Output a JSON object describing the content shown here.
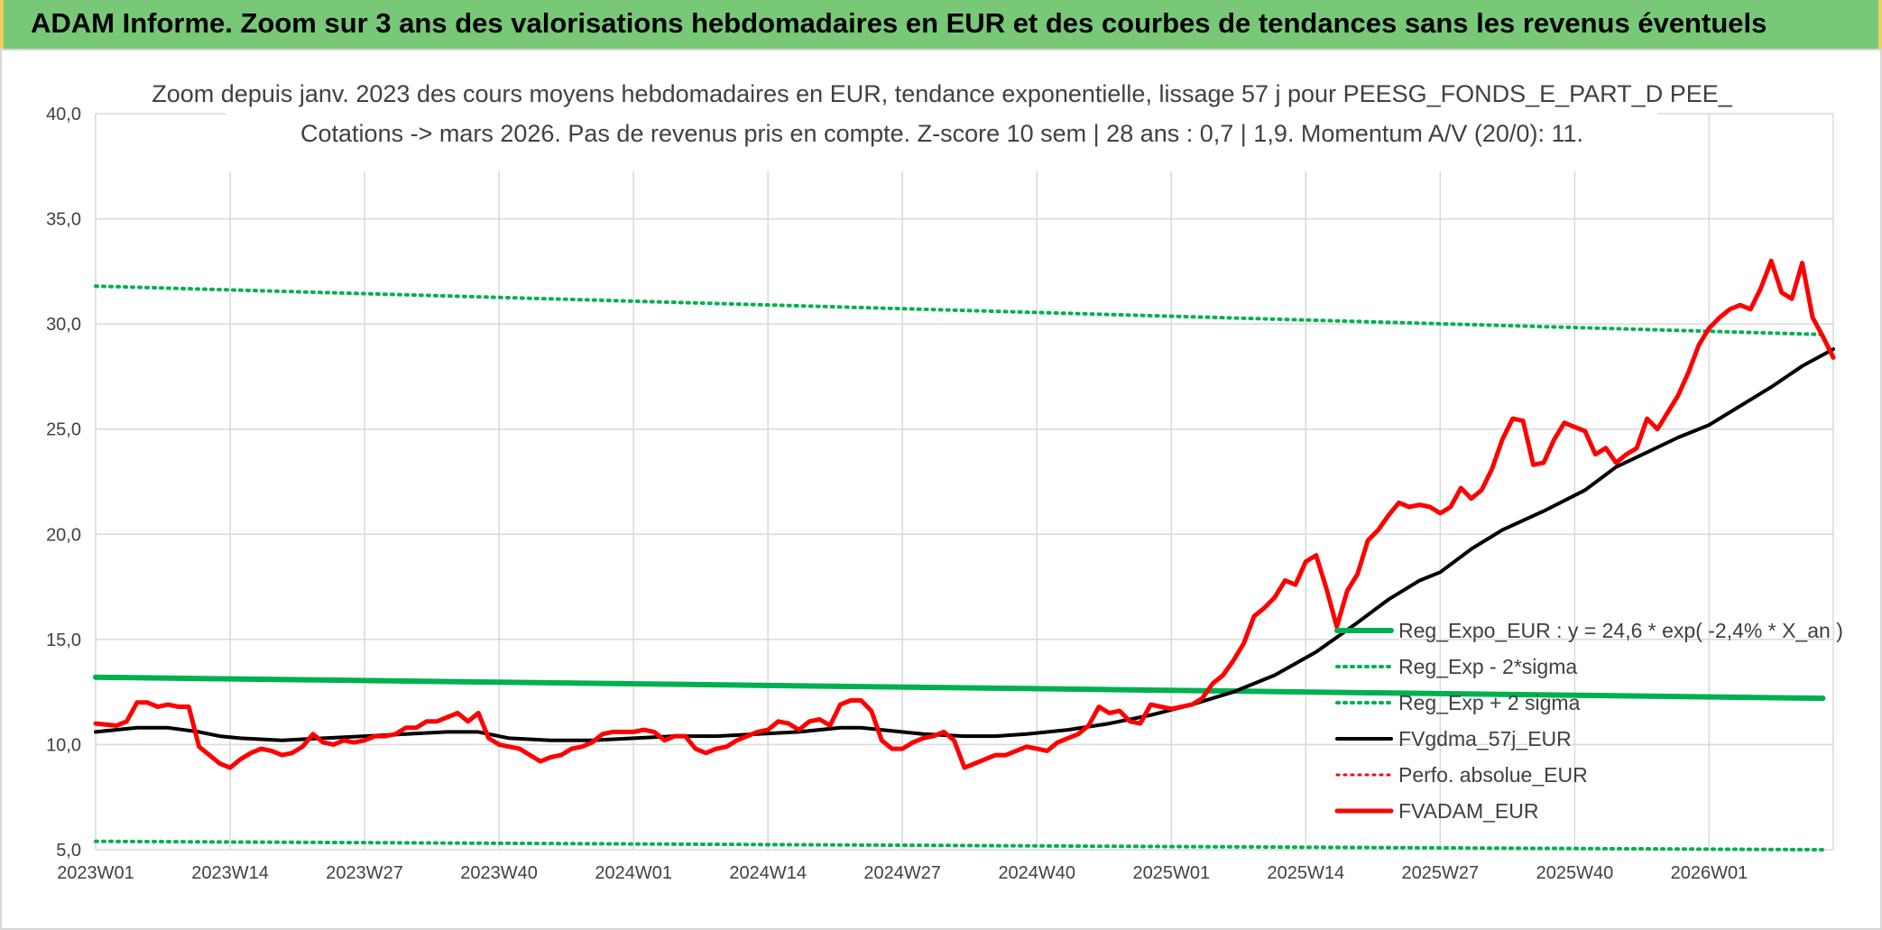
{
  "header": {
    "title": "ADAM Informe. Zoom sur 3 ans des valorisations hebdomadaires en EUR et des courbes de tendances sans les revenus éventuels"
  },
  "chart_data": {
    "type": "line",
    "title_lines": [
      "Zoom depuis janv. 2023 des cours moyens hebdomadaires en EUR, tendance exponentielle, lissage 57 j pour PEESG_FONDS_E_PART_D PEE_",
      "Cotations -> mars 2026. Pas de revenus pris en compte. Z-score 10 sem | 28 ans : 0,7 | 1,9. Momentum A/V (20/0): 11."
    ],
    "xlabel": "",
    "ylabel": "",
    "ylim": [
      5,
      40
    ],
    "yticks": [
      "5,0",
      "10,0",
      "15,0",
      "20,0",
      "25,0",
      "30,0",
      "35,0",
      "40,0"
    ],
    "x_ticks": [
      "2023W01",
      "2023W14",
      "2023W27",
      "2023W40",
      "2024W01",
      "2024W14",
      "2024W27",
      "2024W40",
      "2025W01",
      "2025W14",
      "2025W27",
      "2025W40",
      "2026W01"
    ],
    "grid": true,
    "legend_position": "right",
    "week_count": 168,
    "series": [
      {
        "name": "Reg_Expo_EUR : y = 24,6 * exp( -2,4% *  X_an )",
        "color": "#00b050",
        "style": "solid",
        "width": 6,
        "points": [
          [
            0,
            13.2
          ],
          [
            167,
            12.2
          ]
        ]
      },
      {
        "name": "Reg_Exp - 2*sigma",
        "color": "#00b050",
        "style": "dotted",
        "width": 4,
        "points": [
          [
            0,
            5.4
          ],
          [
            167,
            5.0
          ]
        ]
      },
      {
        "name": "Reg_Exp + 2 sigma",
        "color": "#00b050",
        "style": "dotted",
        "width": 4,
        "points": [
          [
            0,
            31.8
          ],
          [
            167,
            29.5
          ]
        ]
      },
      {
        "name": "FVgdma_57j_EUR",
        "color": "#000000",
        "style": "solid",
        "width": 4,
        "points": [
          [
            0,
            10.6
          ],
          [
            4,
            10.8
          ],
          [
            7,
            10.8
          ],
          [
            10,
            10.6
          ],
          [
            12,
            10.4
          ],
          [
            14,
            10.3
          ],
          [
            18,
            10.2
          ],
          [
            22,
            10.3
          ],
          [
            26,
            10.4
          ],
          [
            30,
            10.5
          ],
          [
            34,
            10.6
          ],
          [
            37,
            10.6
          ],
          [
            40,
            10.3
          ],
          [
            44,
            10.2
          ],
          [
            48,
            10.2
          ],
          [
            52,
            10.3
          ],
          [
            56,
            10.4
          ],
          [
            60,
            10.4
          ],
          [
            64,
            10.5
          ],
          [
            68,
            10.6
          ],
          [
            72,
            10.8
          ],
          [
            74,
            10.8
          ],
          [
            76,
            10.7
          ],
          [
            80,
            10.5
          ],
          [
            84,
            10.4
          ],
          [
            87,
            10.4
          ],
          [
            90,
            10.5
          ],
          [
            94,
            10.7
          ],
          [
            98,
            11.0
          ],
          [
            102,
            11.4
          ],
          [
            106,
            11.9
          ],
          [
            110,
            12.5
          ],
          [
            114,
            13.3
          ],
          [
            118,
            14.4
          ],
          [
            122,
            15.8
          ],
          [
            125,
            16.9
          ],
          [
            128,
            17.8
          ],
          [
            130,
            18.2
          ],
          [
            133,
            19.3
          ],
          [
            136,
            20.2
          ],
          [
            140,
            21.1
          ],
          [
            144,
            22.1
          ],
          [
            147,
            23.2
          ],
          [
            150,
            23.9
          ],
          [
            153,
            24.6
          ],
          [
            156,
            25.2
          ],
          [
            159,
            26.1
          ],
          [
            162,
            27.0
          ],
          [
            165,
            28.0
          ],
          [
            168,
            28.8
          ],
          [
            170,
            29.2
          ],
          [
            172,
            29.3
          ],
          [
            175,
            29.2
          ],
          [
            177,
            28.9
          ],
          [
            178,
            28.8
          ]
        ]
      },
      {
        "name": "Perfo. absolue_EUR",
        "color": "#ff0000",
        "style": "dotted",
        "width": 3,
        "points": []
      },
      {
        "name": "FVADAM_EUR",
        "color": "#ff0000",
        "style": "solid",
        "width": 5,
        "points": [
          [
            0,
            11.0
          ],
          [
            2,
            10.9
          ],
          [
            3,
            11.1
          ],
          [
            4,
            12.0
          ],
          [
            5,
            12.0
          ],
          [
            6,
            11.8
          ],
          [
            7,
            11.9
          ],
          [
            8,
            11.8
          ],
          [
            9,
            11.8
          ],
          [
            10,
            9.9
          ],
          [
            11,
            9.5
          ],
          [
            12,
            9.1
          ],
          [
            13,
            8.9
          ],
          [
            14,
            9.3
          ],
          [
            15,
            9.6
          ],
          [
            16,
            9.8
          ],
          [
            17,
            9.7
          ],
          [
            18,
            9.5
          ],
          [
            19,
            9.6
          ],
          [
            20,
            9.9
          ],
          [
            21,
            10.5
          ],
          [
            22,
            10.1
          ],
          [
            23,
            10.0
          ],
          [
            24,
            10.2
          ],
          [
            25,
            10.1
          ],
          [
            26,
            10.2
          ],
          [
            27,
            10.4
          ],
          [
            28,
            10.4
          ],
          [
            29,
            10.5
          ],
          [
            30,
            10.8
          ],
          [
            31,
            10.8
          ],
          [
            32,
            11.1
          ],
          [
            33,
            11.1
          ],
          [
            34,
            11.3
          ],
          [
            35,
            11.5
          ],
          [
            36,
            11.1
          ],
          [
            37,
            11.5
          ],
          [
            38,
            10.3
          ],
          [
            39,
            10.0
          ],
          [
            40,
            9.9
          ],
          [
            41,
            9.8
          ],
          [
            42,
            9.5
          ],
          [
            43,
            9.2
          ],
          [
            44,
            9.4
          ],
          [
            45,
            9.5
          ],
          [
            46,
            9.8
          ],
          [
            47,
            9.9
          ],
          [
            48,
            10.1
          ],
          [
            49,
            10.5
          ],
          [
            50,
            10.6
          ],
          [
            51,
            10.6
          ],
          [
            52,
            10.6
          ],
          [
            53,
            10.7
          ],
          [
            54,
            10.6
          ],
          [
            55,
            10.2
          ],
          [
            56,
            10.4
          ],
          [
            57,
            10.4
          ],
          [
            58,
            9.8
          ],
          [
            59,
            9.6
          ],
          [
            60,
            9.8
          ],
          [
            61,
            9.9
          ],
          [
            62,
            10.2
          ],
          [
            63,
            10.4
          ],
          [
            64,
            10.6
          ],
          [
            65,
            10.7
          ],
          [
            66,
            11.1
          ],
          [
            67,
            11.0
          ],
          [
            68,
            10.7
          ],
          [
            69,
            11.1
          ],
          [
            70,
            11.2
          ],
          [
            71,
            10.9
          ],
          [
            72,
            11.9
          ],
          [
            73,
            12.1
          ],
          [
            74,
            12.1
          ],
          [
            75,
            11.6
          ],
          [
            76,
            10.2
          ],
          [
            77,
            9.8
          ],
          [
            78,
            9.8
          ],
          [
            79,
            10.1
          ],
          [
            80,
            10.3
          ],
          [
            81,
            10.4
          ],
          [
            82,
            10.6
          ],
          [
            83,
            10.2
          ],
          [
            84,
            8.9
          ],
          [
            85,
            9.1
          ],
          [
            86,
            9.3
          ],
          [
            87,
            9.5
          ],
          [
            88,
            9.5
          ],
          [
            89,
            9.7
          ],
          [
            90,
            9.9
          ],
          [
            91,
            9.8
          ],
          [
            92,
            9.7
          ],
          [
            93,
            10.1
          ],
          [
            94,
            10.3
          ],
          [
            95,
            10.5
          ],
          [
            96,
            10.9
          ],
          [
            97,
            11.8
          ],
          [
            98,
            11.5
          ],
          [
            99,
            11.6
          ],
          [
            100,
            11.1
          ],
          [
            101,
            11.0
          ],
          [
            102,
            11.9
          ],
          [
            103,
            11.8
          ],
          [
            104,
            11.7
          ],
          [
            105,
            11.8
          ],
          [
            106,
            11.9
          ],
          [
            107,
            12.2
          ],
          [
            108,
            12.9
          ],
          [
            109,
            13.3
          ],
          [
            110,
            14.0
          ],
          [
            111,
            14.8
          ],
          [
            112,
            16.1
          ],
          [
            113,
            16.5
          ],
          [
            114,
            17.0
          ],
          [
            115,
            17.8
          ],
          [
            116,
            17.6
          ],
          [
            117,
            18.7
          ],
          [
            118,
            19.0
          ],
          [
            119,
            17.4
          ],
          [
            120,
            15.6
          ],
          [
            121,
            17.3
          ],
          [
            122,
            18.1
          ],
          [
            123,
            19.7
          ],
          [
            124,
            20.2
          ],
          [
            125,
            20.9
          ],
          [
            126,
            21.5
          ],
          [
            127,
            21.3
          ],
          [
            128,
            21.4
          ],
          [
            129,
            21.3
          ],
          [
            130,
            21.0
          ],
          [
            131,
            21.3
          ],
          [
            132,
            22.2
          ],
          [
            133,
            21.7
          ],
          [
            134,
            22.1
          ],
          [
            135,
            23.1
          ],
          [
            136,
            24.5
          ],
          [
            137,
            25.5
          ],
          [
            138,
            25.4
          ],
          [
            139,
            23.3
          ],
          [
            140,
            23.4
          ],
          [
            141,
            24.5
          ],
          [
            142,
            25.3
          ],
          [
            143,
            25.1
          ],
          [
            144,
            24.9
          ],
          [
            145,
            23.8
          ],
          [
            146,
            24.1
          ],
          [
            147,
            23.4
          ],
          [
            148,
            23.8
          ],
          [
            149,
            24.1
          ],
          [
            150,
            25.5
          ],
          [
            151,
            25.0
          ],
          [
            152,
            25.8
          ],
          [
            153,
            26.6
          ],
          [
            154,
            27.7
          ],
          [
            155,
            29.0
          ],
          [
            156,
            29.8
          ],
          [
            157,
            30.3
          ],
          [
            158,
            30.7
          ],
          [
            159,
            30.9
          ],
          [
            160,
            30.7
          ],
          [
            161,
            31.7
          ],
          [
            162,
            33.0
          ],
          [
            163,
            31.5
          ],
          [
            164,
            31.2
          ],
          [
            165,
            32.9
          ],
          [
            166,
            30.3
          ],
          [
            167,
            29.4
          ],
          [
            168,
            28.4
          ],
          [
            169,
            28.3
          ]
        ]
      }
    ]
  }
}
